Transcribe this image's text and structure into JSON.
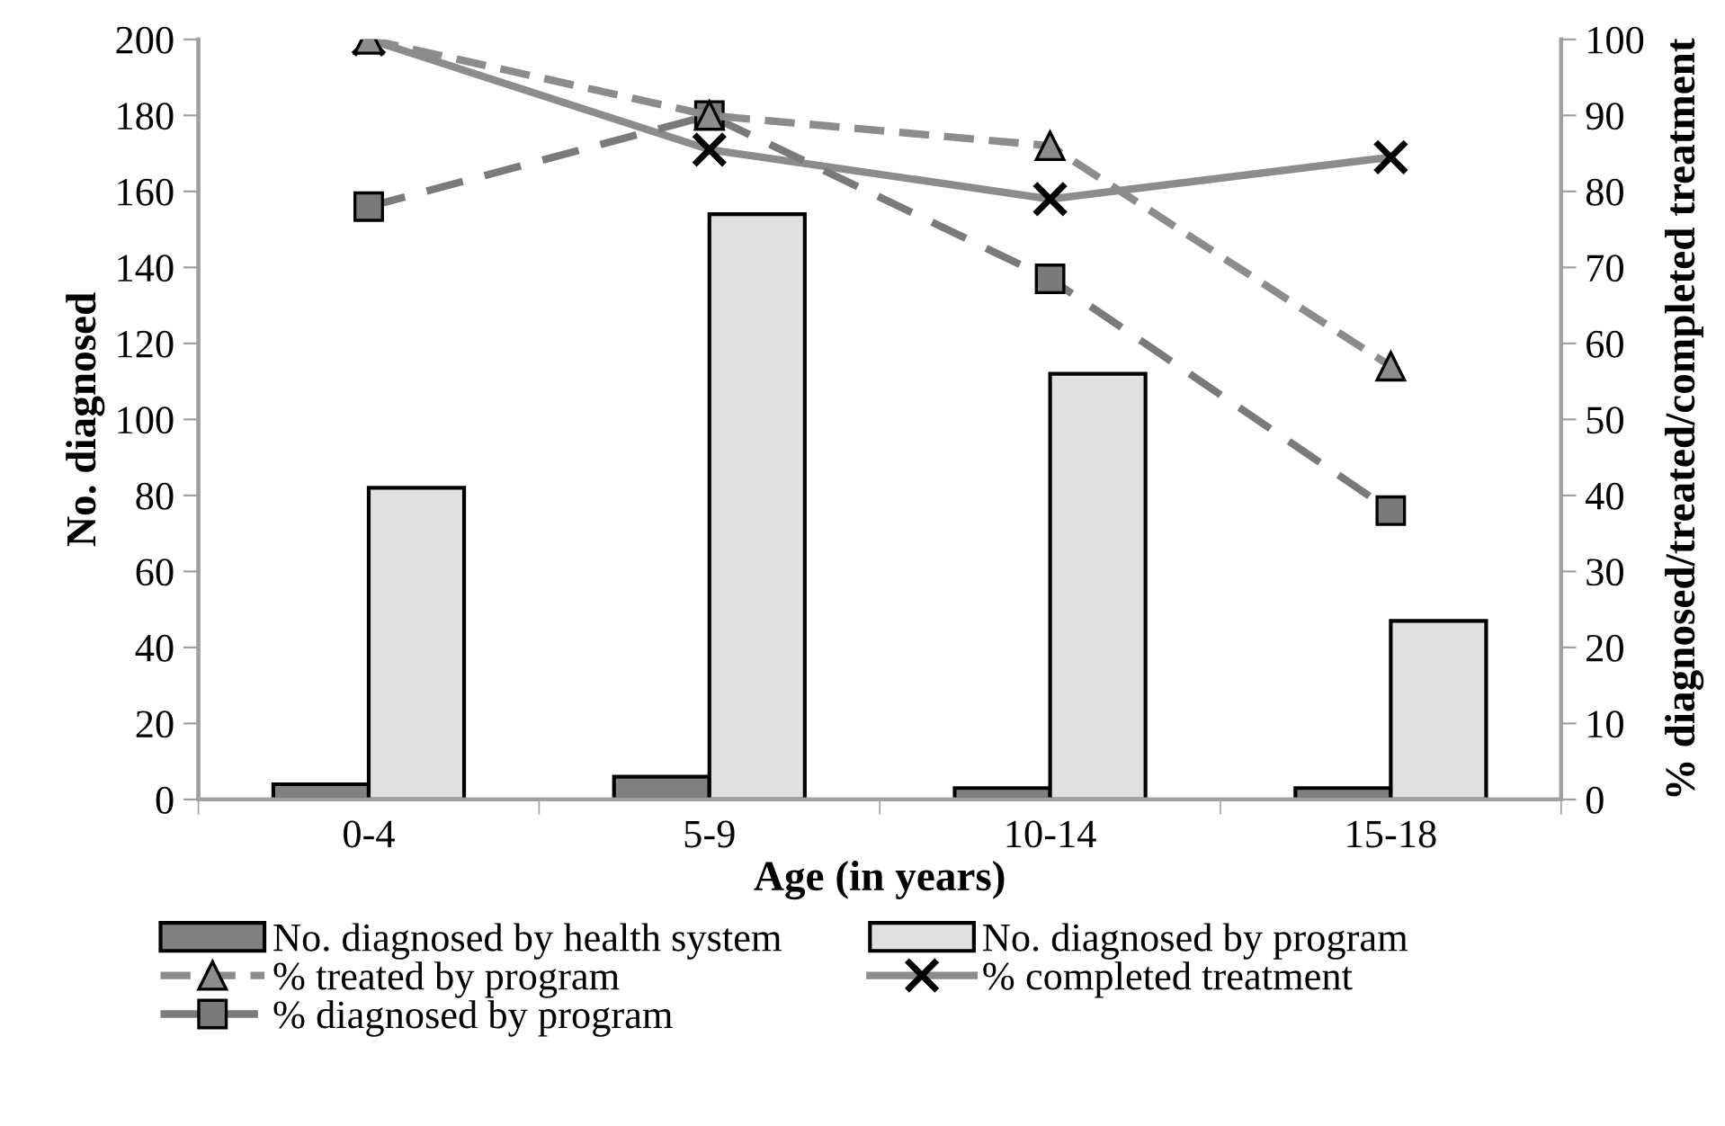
{
  "chart_data": {
    "type": "bar",
    "xlabel": "Age (in years)",
    "ylabel": "No. diagnosed",
    "y2label": "% diagnosed/treated/completed treatment",
    "categories": [
      "0-4",
      "5-9",
      "10-14",
      "15-18"
    ],
    "series": [
      {
        "name": "No. diagnosed by health system",
        "color": "#808080",
        "values": [
          4,
          6,
          3,
          3
        ]
      },
      {
        "name": "No. diagnosed by program",
        "color": "#e0e0e0",
        "values": [
          82,
          154,
          112,
          47
        ]
      },
      {
        "name": "% treated by program",
        "type": "line",
        "axis": "y2",
        "color": "#8c8c8c",
        "marker": "triangle",
        "line_style": "dashed",
        "values": [
          100,
          90,
          86,
          57
        ]
      },
      {
        "name": "% completed treatment",
        "type": "line",
        "axis": "y2",
        "color": "#8c8c8c",
        "marker": "cross",
        "line_style": "solid",
        "values": [
          100,
          85.5,
          79,
          84.5
        ]
      },
      {
        "name": "% diagnosed by program",
        "type": "line",
        "axis": "y2",
        "color": "#7a7a7a",
        "marker": "square",
        "line_style": "dashed",
        "values": [
          78,
          90,
          68.5,
          38
        ]
      }
    ],
    "ylim": [
      0,
      200
    ],
    "yticks": [
      0,
      20,
      40,
      60,
      80,
      100,
      120,
      140,
      160,
      180,
      200
    ],
    "y2lim": [
      0,
      100
    ],
    "y2ticks": [
      0,
      10,
      20,
      30,
      40,
      50,
      60,
      70,
      80,
      90,
      100
    ],
    "grid": false,
    "legend": "bottom"
  }
}
